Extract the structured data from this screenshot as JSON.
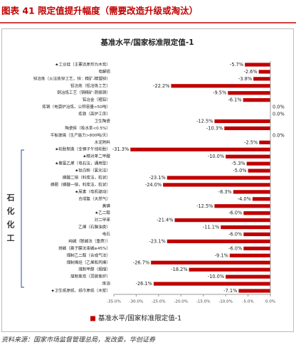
{
  "header": {
    "title": "图表 41    限定值提升幅度（需要改造升级或淘汰）",
    "source": "资料来源：国家市场监督管理总局，发改委，华创证券"
  },
  "chart_data": {
    "type": "bar",
    "orientation": "horizontal",
    "title": "基准水平/国家标准限定值-1",
    "side_label": "石化化工",
    "categories": [
      "★工业硅（主要还原剂为木炭）",
      "电解铝",
      "锌冶炼（火法炼锌工艺，锌：精矿-精馏锌）",
      "铅冶炼（铅冶炼工艺）",
      "铜冶炼工艺（铜精矿-阴极铜）",
      "铅冶金（粗铅）",
      "炼钢（电弧炉冶炼，公称容量>50吨）",
      "炼铁（高炉工序）",
      "卫生陶瓷",
      "陶瓷砖（吸水率<0.5%）",
      "平板玻璃（生产能力>800吨/天）",
      "水泥熟料",
      "★轮胎制造（全钢子午线轮胎）",
      "★精对苯二甲酸",
      "★聚氯乙烯（电石法，通用型）",
      "★钛白粉（氯化法）",
      "磷酸二铵（料浆法，粒状）",
      "磷肥（磷酸一铵，料浆法，粒状）",
      "★尿素（电机驱动）",
      "合成氨（天然气）",
      "黄磷",
      "★乙二醇",
      "对二甲苯",
      "乙烯（石脑油类）",
      "电石",
      "纯碱（联碱法（重质））",
      "烧碱（离子膜法液碱≥45%）",
      "煤制乙二醇（合成气法）",
      "煤制烯烃（乙烯和丙烯）",
      "煤制甲醇（烟煤）",
      "煤制焦炭（顶装焦炉）",
      "炼油",
      "★卫生纸原纸、纸巾原纸（木浆）"
    ],
    "series": [
      {
        "name": "基准水平/国家标准限定值-1",
        "color": "#c00000",
        "values": [
          -5.7,
          -2.6,
          -3.8,
          -22.2,
          -9.5,
          -6.1,
          0.0,
          0.0,
          -12.5,
          -10.3,
          0.0,
          -2.5,
          -31.3,
          -10.0,
          -5.3,
          -5.0,
          -23.1,
          -24.0,
          -8.3,
          -4.0,
          -12.5,
          -6.0,
          -21.4,
          -11.1,
          -6.0,
          -23.1,
          -6.0,
          -9.1,
          -26.7,
          -18.2,
          -10.0,
          -26.1,
          -7.1
        ],
        "value_labels": [
          "-5.7%",
          "-2.6%",
          "-3.8%",
          "-22.2%",
          "-9.5%",
          "-6.1%",
          "0.0%",
          "0.0%",
          "-12.5%",
          "-10.3%",
          "0.0%",
          "-2.5%",
          "-31.3%",
          "-10.0%",
          "-5.3%",
          "-5.0%",
          "-23.1%",
          "-24.0%",
          "-8.3%",
          "-4.0%",
          "-12.5%",
          "-6.0%",
          "-21.4%",
          "-11.1%",
          "-6.0%",
          "-23.1%",
          "-6.0%",
          "-9.1%",
          "-26.7%",
          "-18.2%",
          "-10.0%",
          "-26.1%",
          "-7.1%"
        ]
      }
    ],
    "xlim": [
      -35,
      0
    ],
    "xticks": [
      {
        "value": -35,
        "label": "-35.0%"
      },
      {
        "value": -30,
        "label": "-30.0%"
      },
      {
        "value": -25,
        "label": "-25.0%"
      },
      {
        "value": -20,
        "label": "-20.0%"
      },
      {
        "value": -15,
        "label": "-15.0%"
      },
      {
        "value": -10,
        "label": "-10.0%"
      },
      {
        "value": -5,
        "label": "-5.0%"
      },
      {
        "value": 0,
        "label": "0.0%"
      }
    ],
    "legend": "bottom"
  }
}
